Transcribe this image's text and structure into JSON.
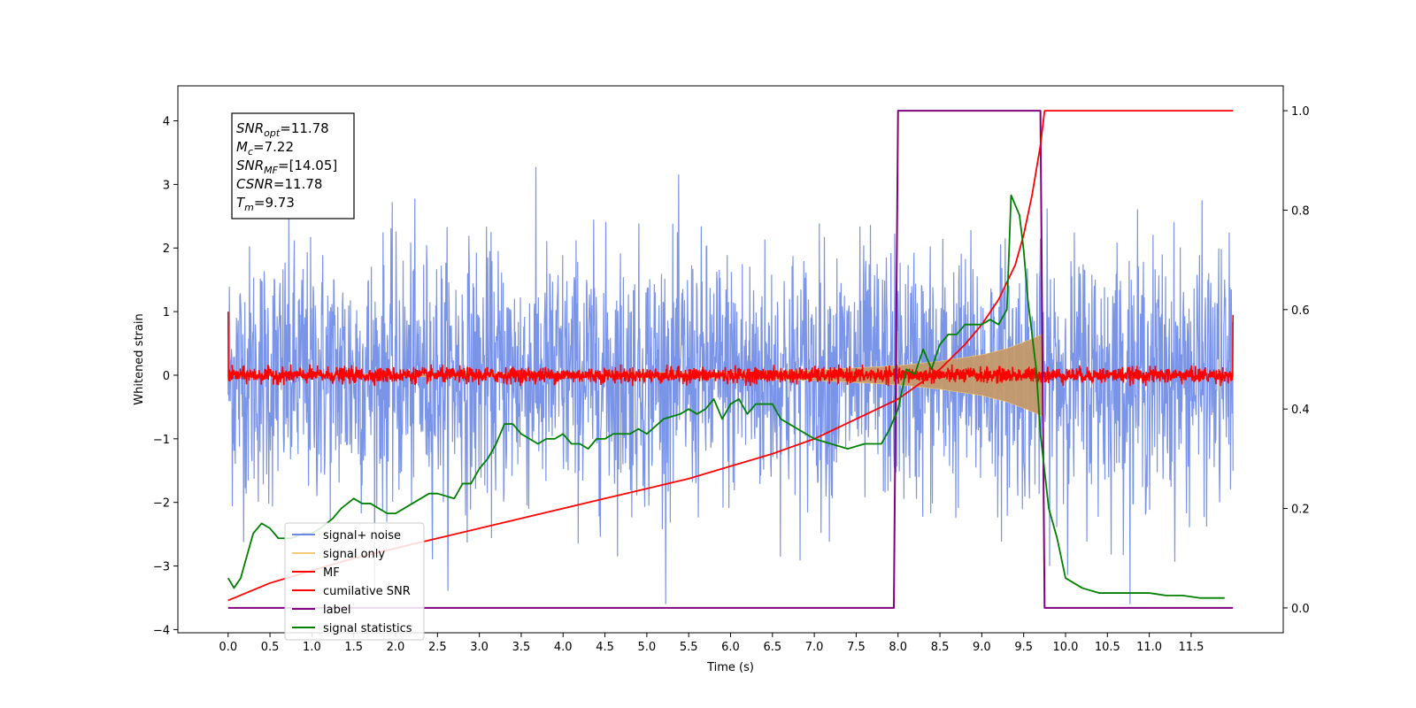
{
  "chart_data": {
    "type": "line",
    "title": "",
    "xlabel": "Time (s)",
    "ylabel": "Whitened strain",
    "ylabel_right": "",
    "xlim": [
      -0.6,
      12.6
    ],
    "ylim_left": [
      -4.05,
      4.55
    ],
    "ylim_right": [
      -0.05,
      1.05
    ],
    "x_ticks": [
      0.0,
      0.5,
      1.0,
      1.5,
      2.0,
      2.5,
      3.0,
      3.5,
      4.0,
      4.5,
      5.0,
      5.5,
      6.0,
      6.5,
      7.0,
      7.5,
      8.0,
      8.5,
      9.0,
      9.5,
      10.0,
      10.5,
      11.0,
      11.5
    ],
    "x_tick_labels": [
      "0.0",
      "0.5",
      "1.0",
      "1.5",
      "2.0",
      "2.5",
      "3.0",
      "3.5",
      "4.0",
      "4.5",
      "5.0",
      "5.5",
      "6.0",
      "6.5",
      "7.0",
      "7.5",
      "8.0",
      "8.5",
      "9.0",
      "9.5",
      "10.0",
      "10.5",
      "11.0",
      "11.5"
    ],
    "y_ticks_left": [
      -4,
      -3,
      -2,
      -1,
      0,
      1,
      2,
      3,
      4
    ],
    "y_tick_labels_left": [
      "−4",
      "−3",
      "−2",
      "−1",
      "0",
      "1",
      "2",
      "3",
      "4"
    ],
    "y_ticks_right": [
      0.0,
      0.2,
      0.4,
      0.6,
      0.8,
      1.0
    ],
    "y_tick_labels_right": [
      "0.0",
      "0.2",
      "0.4",
      "0.6",
      "0.8",
      "1.0"
    ],
    "grid": false,
    "legend_position": "lower-left",
    "series": [
      {
        "name": "signal+ noise",
        "axis": "left",
        "color": "#6b88e6",
        "x_range": [
          0.0,
          12.0
        ],
        "mean": 0.0,
        "std": 1.0,
        "y_range": [
          -3.6,
          4.15
        ]
      },
      {
        "name": "signal only",
        "axis": "left",
        "color": "#f5c87a",
        "x_range": [
          0.0,
          9.73
        ],
        "amplitude_envelope": {
          "x": [
            0.0,
            2.0,
            4.0,
            6.0,
            7.0,
            8.0,
            8.5,
            9.0,
            9.3,
            9.5,
            9.65,
            9.73
          ],
          "y": [
            0.01,
            0.02,
            0.03,
            0.05,
            0.08,
            0.15,
            0.22,
            0.32,
            0.42,
            0.52,
            0.6,
            0.65
          ]
        }
      },
      {
        "name": "MF",
        "axis": "left",
        "color": "#ff0000",
        "x_range": [
          0.0,
          12.0
        ],
        "mean": 0.0,
        "std": 0.06,
        "edge_values": {
          "x_start": 0.0,
          "y_start": 1.0,
          "x_end": 12.0,
          "y_end": 0.95
        }
      },
      {
        "name": "cumilative SNR",
        "axis": "right",
        "color": "#ff0000",
        "x": [
          0.0,
          0.5,
          1.0,
          1.5,
          2.0,
          2.5,
          3.0,
          3.5,
          4.0,
          4.5,
          5.0,
          5.5,
          6.0,
          6.5,
          7.0,
          7.5,
          8.0,
          8.5,
          8.8,
          9.0,
          9.2,
          9.4,
          9.5,
          9.6,
          9.7,
          9.75,
          10.0,
          11.0,
          12.0
        ],
        "y": [
          0.015,
          0.05,
          0.075,
          0.1,
          0.12,
          0.14,
          0.16,
          0.18,
          0.2,
          0.22,
          0.24,
          0.26,
          0.285,
          0.31,
          0.34,
          0.38,
          0.42,
          0.48,
          0.53,
          0.57,
          0.62,
          0.69,
          0.75,
          0.83,
          0.93,
          1.0,
          1.0,
          1.0,
          1.0
        ]
      },
      {
        "name": "label",
        "axis": "right",
        "color": "#800080",
        "x": [
          0.0,
          7.95,
          8.0,
          9.7,
          9.75,
          12.0
        ],
        "y": [
          0.0,
          0.0,
          1.0,
          1.0,
          0.0,
          0.0
        ]
      },
      {
        "name": "signal statistics",
        "axis": "right",
        "color": "#008000",
        "x": [
          0.0,
          0.07,
          0.15,
          0.3,
          0.4,
          0.5,
          0.6,
          0.75,
          0.9,
          1.0,
          1.1,
          1.25,
          1.35,
          1.5,
          1.6,
          1.7,
          1.8,
          1.9,
          2.0,
          2.1,
          2.3,
          2.4,
          2.5,
          2.7,
          2.8,
          2.9,
          3.0,
          3.1,
          3.2,
          3.3,
          3.4,
          3.5,
          3.6,
          3.7,
          3.8,
          3.9,
          4.0,
          4.1,
          4.2,
          4.3,
          4.4,
          4.5,
          4.6,
          4.8,
          4.9,
          5.0,
          5.2,
          5.4,
          5.5,
          5.6,
          5.7,
          5.8,
          5.9,
          6.0,
          6.1,
          6.2,
          6.3,
          6.4,
          6.5,
          6.6,
          6.8,
          7.0,
          7.2,
          7.4,
          7.6,
          7.8,
          7.9,
          8.0,
          8.1,
          8.2,
          8.3,
          8.4,
          8.5,
          8.6,
          8.7,
          8.8,
          8.9,
          9.0,
          9.1,
          9.2,
          9.3,
          9.35,
          9.45,
          9.5,
          9.55,
          9.6,
          9.65,
          9.7,
          9.8,
          9.9,
          10.0,
          10.2,
          10.4,
          10.6,
          10.8,
          11.0,
          11.2,
          11.4,
          11.6,
          11.8,
          11.9
        ],
        "y": [
          0.06,
          0.04,
          0.06,
          0.15,
          0.17,
          0.16,
          0.14,
          0.14,
          0.15,
          0.15,
          0.16,
          0.18,
          0.2,
          0.22,
          0.21,
          0.21,
          0.2,
          0.19,
          0.19,
          0.2,
          0.22,
          0.23,
          0.23,
          0.22,
          0.25,
          0.25,
          0.28,
          0.3,
          0.33,
          0.37,
          0.37,
          0.35,
          0.34,
          0.33,
          0.34,
          0.34,
          0.35,
          0.33,
          0.33,
          0.32,
          0.34,
          0.34,
          0.35,
          0.35,
          0.36,
          0.35,
          0.38,
          0.39,
          0.4,
          0.39,
          0.4,
          0.42,
          0.38,
          0.41,
          0.42,
          0.39,
          0.41,
          0.41,
          0.41,
          0.38,
          0.36,
          0.34,
          0.33,
          0.32,
          0.33,
          0.33,
          0.36,
          0.4,
          0.48,
          0.47,
          0.52,
          0.48,
          0.53,
          0.55,
          0.55,
          0.57,
          0.57,
          0.57,
          0.58,
          0.57,
          0.6,
          0.83,
          0.79,
          0.72,
          0.62,
          0.55,
          0.48,
          0.35,
          0.2,
          0.14,
          0.06,
          0.04,
          0.03,
          0.03,
          0.03,
          0.03,
          0.025,
          0.025,
          0.02,
          0.02,
          0.02
        ]
      }
    ],
    "annotation": {
      "lines": [
        {
          "main": "SNR",
          "sub": "opt",
          "value": "=11.78"
        },
        {
          "main": "M",
          "sub": "c",
          "value": "=7.22"
        },
        {
          "main": "SNR",
          "sub": "MF",
          "value": "=[14.05]"
        },
        {
          "main": "CSNR",
          "sub": "",
          "value": "=11.78"
        },
        {
          "main": "T",
          "sub": "m",
          "value": "=9.73"
        }
      ]
    }
  }
}
